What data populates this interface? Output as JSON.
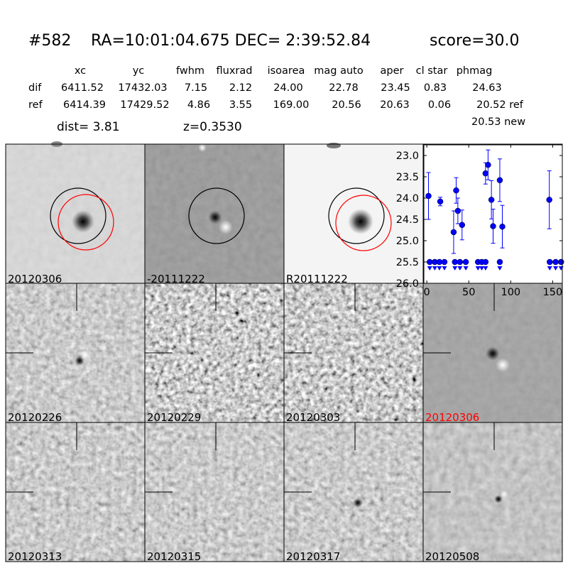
{
  "header": {
    "id": "#582",
    "coords": "RA=10:01:04.675 DEC= 2:39:52.84",
    "score": "score=30.0"
  },
  "table": {
    "columns": [
      "xc",
      "yc",
      "fwhm",
      "fluxrad",
      "isoarea",
      "mag auto",
      "aper",
      "cl star",
      "phmag"
    ],
    "rows": [
      {
        "label": "dif",
        "cells": [
          "6411.52",
          "17432.03",
          "7.15",
          "2.12",
          "24.00",
          "22.78",
          "23.45",
          "0.83",
          "24.63"
        ]
      },
      {
        "label": "ref",
        "cells": [
          "6414.39",
          "17429.52",
          "4.86",
          "3.55",
          "169.00",
          "20.56",
          "20.63",
          "0.06",
          "20.52 ref"
        ]
      }
    ],
    "note": "20.53 new"
  },
  "info": {
    "dist": "dist=  3.81",
    "z": "z=0.3530"
  },
  "stamps": [
    "20120306",
    "-20111222",
    "R20111222",
    "20120226",
    "20120229",
    "20120303",
    "20120306",
    "20120313",
    "20120315",
    "20120317",
    "20120508"
  ],
  "chart_data": {
    "type": "scatter",
    "series": [
      {
        "color": "#0000ff",
        "marker": "point",
        "x": [
          2,
          16,
          32,
          35,
          37,
          42,
          70,
          73,
          77,
          79,
          87,
          90,
          146
        ],
        "values": [
          23.95,
          24.08,
          24.8,
          23.82,
          24.3,
          24.63,
          23.42,
          23.22,
          24.04,
          24.66,
          23.58,
          24.67,
          24.04
        ],
        "errors": [
          0.55,
          0.1,
          0.5,
          0.3,
          0.3,
          0.35,
          0.25,
          0.35,
          0.45,
          0.4,
          0.5,
          0.5,
          0.68
        ]
      },
      {
        "color": "#0000ff",
        "marker": "limit",
        "x": [
          3.5,
          9.5,
          15,
          21,
          33.5,
          39.5,
          46.5,
          61,
          65.5,
          70,
          87,
          146.5,
          153.5,
          160
        ],
        "values": [
          25.5,
          25.5,
          25.5,
          25.5,
          25.5,
          25.5,
          25.5,
          25.5,
          25.5,
          25.5,
          25.5,
          25.5,
          25.5,
          25.5
        ]
      }
    ],
    "xlim": [
      -3.5,
      161.5
    ],
    "xticks": [
      0,
      50,
      100,
      150
    ],
    "ylim": [
      26.0,
      22.75
    ],
    "yticks": [
      {
        "value": 23.0,
        "label": "23.0"
      },
      {
        "value": 23.5,
        "label": "23.5"
      },
      {
        "value": 24.0,
        "label": "24.0"
      },
      {
        "value": 24.5,
        "label": "24.5"
      },
      {
        "value": 25.0,
        "label": "25.0"
      },
      {
        "value": 25.5,
        "label": "25.5"
      },
      {
        "value": 26.0,
        "label": "26.0"
      }
    ]
  }
}
